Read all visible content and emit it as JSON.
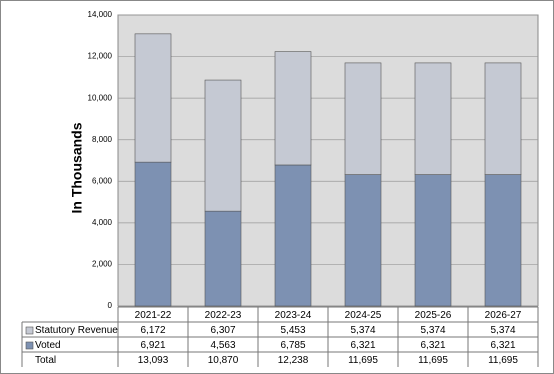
{
  "chart_data": {
    "type": "stacked-bar",
    "y_label": "In Thousands",
    "categories": [
      "2021-22",
      "2022-23",
      "2023-24",
      "2024-25",
      "2025-26",
      "2026-27"
    ],
    "series": [
      {
        "name": "Statutory Revenue",
        "color": "#c5c9d3",
        "values": [
          6172,
          6307,
          5453,
          5374,
          5374,
          5374
        ],
        "value_labels": [
          "6,172",
          "6,307",
          "5,453",
          "5,374",
          "5,374",
          "5,374"
        ]
      },
      {
        "name": "Voted",
        "color": "#7d91b2",
        "values": [
          6921,
          4563,
          6785,
          6321,
          6321,
          6321
        ],
        "value_labels": [
          "6,921",
          "4,563",
          "6,785",
          "6,321",
          "6,321",
          "6,321"
        ]
      }
    ],
    "total": {
      "name": "Total",
      "values": [
        13093,
        10870,
        12238,
        11695,
        11695,
        11695
      ],
      "value_labels": [
        "13,093",
        "10,870",
        "12,238",
        "11,695",
        "11,695",
        "11,695"
      ]
    },
    "ylim": [
      0,
      14000
    ],
    "yticks": [
      0,
      {
        "value": 2000,
        "label": "2,000"
      },
      {
        "value": 4000,
        "label": "4,000"
      },
      {
        "value": 6000,
        "label": "6,000"
      },
      {
        "value": 8000,
        "label": "8,000"
      },
      {
        "value": 10000,
        "label": "10,000"
      },
      {
        "value": 12000,
        "label": "12,000"
      },
      {
        "value": 14000,
        "label": "14,000"
      }
    ],
    "grid": true
  }
}
